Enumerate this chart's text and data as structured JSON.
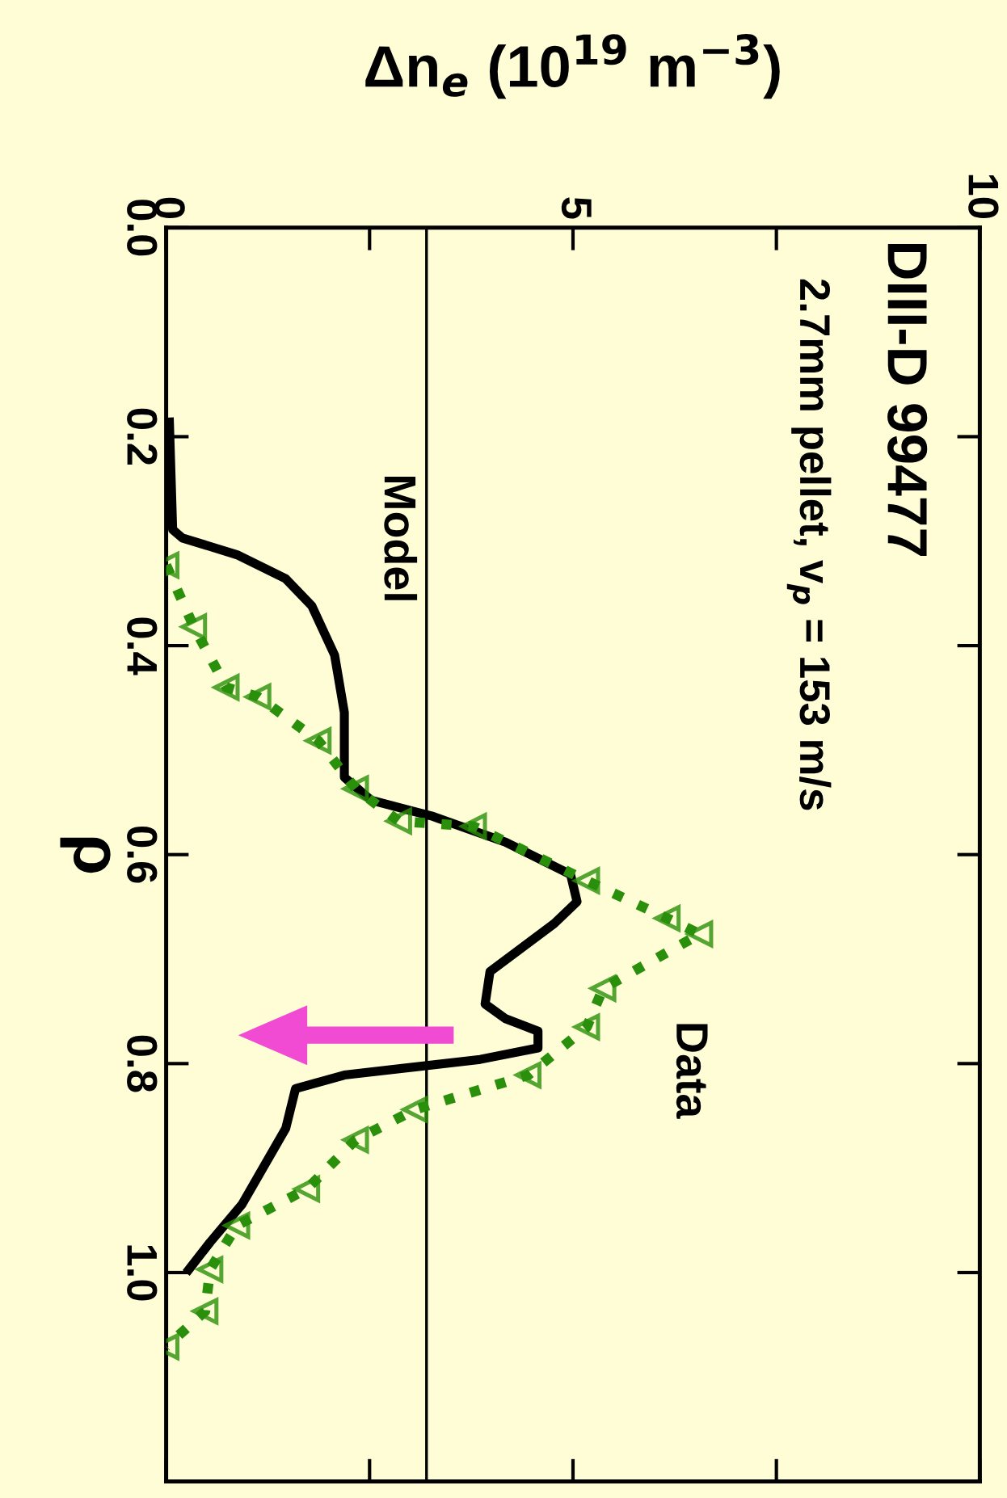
{
  "chart_data": {
    "type": "line",
    "orientation": "horizontal",
    "title": "DIII-D 99477",
    "subtitle": "2.7mm pellet, v$_{p}$ = 153 m/s",
    "xlabel": "Δn$_{e}$ (10$^{19}$ m$^{−3}$)",
    "ylabel": "ρ",
    "xlim": [
      0,
      10
    ],
    "xticks": [
      0,
      {
        "value": 2.5,
        "label": null
      },
      5,
      {
        "value": 7.5,
        "label": null
      },
      10
    ],
    "ylim": [
      1.2,
      0
    ],
    "yticks": [
      {
        "value": 0,
        "label": "0.0"
      },
      0.2,
      0.4,
      0.6,
      0.8,
      {
        "value": 1.0,
        "label": "1.0"
      },
      {
        "value": 1.2,
        "label": null
      }
    ],
    "ref_lines": [
      {
        "axis": "x",
        "value": 3.2,
        "color": "#000000"
      }
    ],
    "grid": false,
    "legend": false,
    "series": [
      {
        "name": "Model",
        "color": "#000000",
        "line_style": "solid",
        "marker": "none",
        "x": [
          0.186,
          0.289,
          0.297,
          0.313,
          0.336,
          0.362,
          0.409,
          0.464,
          0.526,
          0.548,
          0.563,
          0.588,
          0.619,
          0.645,
          0.666,
          0.712,
          0.743,
          0.757,
          0.769,
          0.785,
          0.796,
          0.811,
          0.824,
          0.862,
          0.935,
          0.971,
          0.997
        ],
        "values": [
          0.04,
          0.08,
          0.2,
          0.87,
          1.47,
          1.79,
          2.07,
          2.19,
          2.19,
          2.52,
          3.26,
          4.17,
          4.97,
          5.05,
          4.77,
          3.98,
          3.92,
          4.17,
          4.57,
          4.57,
          3.86,
          2.19,
          1.59,
          1.47,
          0.93,
          0.54,
          0.28
        ]
      },
      {
        "name": "Data",
        "color": "#2a8f0a",
        "line_style": "dotted",
        "marker": "triangle",
        "x": [
          0.323,
          0.382,
          0.44,
          0.449,
          0.491,
          0.537,
          0.568,
          0.573,
          0.625,
          0.661,
          0.676,
          0.728,
          0.765,
          0.811,
          0.844,
          0.873,
          0.92,
          0.955,
          0.997,
          1.037,
          1.071
        ],
        "values": [
          0.0,
          0.34,
          0.74,
          1.13,
          1.87,
          2.33,
          2.86,
          3.78,
          5.17,
          6.16,
          6.56,
          5.37,
          5.17,
          4.45,
          3.06,
          2.33,
          1.73,
          0.87,
          0.54,
          0.48,
          0.0
        ]
      }
    ]
  }
}
